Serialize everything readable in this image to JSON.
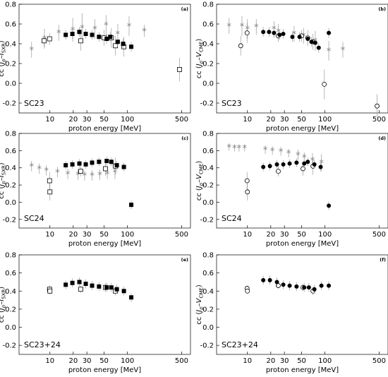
{
  "figure": {
    "x_axis": {
      "label": "proton energy [MeV]",
      "scale": "log",
      "range": [
        4,
        650
      ],
      "ticks": [
        10,
        20,
        30,
        50,
        100,
        500
      ],
      "tick_labels": [
        "10",
        "20",
        "30",
        "50",
        "100",
        "500"
      ]
    },
    "y_axis": {
      "range": [
        -0.3,
        0.8
      ],
      "ticks": [
        -0.2,
        0.0,
        0.2,
        0.4,
        0.6,
        0.8
      ],
      "tick_labels": [
        "-0.2",
        "0.0",
        "0.2",
        "0.4",
        "0.6",
        "0.8"
      ]
    },
    "colors": {
      "error_bar": "#a6a6a6",
      "star": "#7f7f7f",
      "marker": "#000000"
    }
  },
  "chart_data": [
    {
      "type": "scatter",
      "panel_label": "(a)",
      "cycle_label": "SC23",
      "ylabel": {
        "main": "cc (",
        "j": "J",
        "jsub": "p",
        "dash": "–",
        "v": "I",
        "vsub": "SXR",
        "close": ")"
      },
      "series": [
        {
          "marker": "filled-square",
          "points": [
            [
              16,
              0.49
            ],
            [
              19.5,
              0.5
            ],
            [
              24,
              0.52
            ],
            [
              29,
              0.5
            ],
            [
              35,
              0.49
            ],
            [
              43,
              0.47
            ],
            [
              54,
              0.45
            ],
            [
              60,
              0.47
            ],
            [
              75,
              0.42
            ],
            [
              88,
              0.4
            ],
            [
              112,
              0.37
            ]
          ]
        },
        {
          "marker": "open-square",
          "points": [
            [
              8.4,
              0.43,
              0.06
            ],
            [
              9.9,
              0.45,
              0.06
            ],
            [
              25,
              0.43,
              0.1
            ],
            [
              50,
              0.46,
              0.08
            ],
            [
              62,
              0.46,
              0.1
            ],
            [
              70,
              0.38,
              0.1
            ],
            [
              90,
              0.37,
              0.1
            ],
            [
              470,
              0.14,
              0.12
            ]
          ]
        },
        {
          "marker": "star",
          "points": [
            [
              5.8,
              0.34,
              0.08
            ],
            [
              8.5,
              0.45,
              0.1
            ],
            [
              13,
              0.51,
              0.08
            ],
            [
              19.7,
              0.54,
              0.12
            ],
            [
              26,
              0.56,
              0.15
            ],
            [
              38,
              0.55,
              0.1
            ],
            [
              53,
              0.59,
              0.1
            ],
            [
              75,
              0.5,
              0.1
            ],
            [
              105,
              0.58,
              0.1
            ],
            [
              165,
              0.53,
              0.06
            ]
          ]
        }
      ]
    },
    {
      "type": "scatter",
      "panel_label": "(b)",
      "cycle_label": "SC23",
      "ylabel": {
        "main": "cc (",
        "j": "J",
        "jsub": "p",
        "dash": "–",
        "v": "V",
        "vsub": "CME",
        "close": ")"
      },
      "series": [
        {
          "marker": "filled-circle",
          "points": [
            [
              16,
              0.52
            ],
            [
              19,
              0.52
            ],
            [
              22,
              0.51
            ],
            [
              26,
              0.49
            ],
            [
              29,
              0.5
            ],
            [
              38,
              0.47
            ],
            [
              47,
              0.47
            ],
            [
              60,
              0.45
            ],
            [
              67,
              0.42
            ],
            [
              75,
              0.41
            ],
            [
              83,
              0.36
            ],
            [
              112,
              0.51
            ]
          ]
        },
        {
          "marker": "open-circle",
          "points": [
            [
              8.2,
              0.38,
              0.1
            ],
            [
              9.9,
              0.51,
              0.1
            ],
            [
              25,
              0.48,
              0.06
            ],
            [
              50,
              0.48,
              0.06
            ],
            [
              60,
              0.46,
              0.08
            ],
            [
              70,
              0.42,
              0.08
            ],
            [
              98,
              -0.01,
              0.15
            ],
            [
              470,
              -0.23,
              0.12
            ]
          ]
        },
        {
          "marker": "star",
          "points": [
            [
              5.8,
              0.58,
              0.08
            ],
            [
              8.5,
              0.58,
              0.1
            ],
            [
              10,
              0.55,
              0.1
            ],
            [
              13,
              0.57,
              0.08
            ],
            [
              22,
              0.55,
              0.08
            ],
            [
              25,
              0.52,
              0.08
            ],
            [
              40,
              0.5,
              0.08
            ],
            [
              53,
              0.48,
              0.08
            ],
            [
              75,
              0.43,
              0.1
            ],
            [
              112,
              0.33,
              0.1
            ],
            [
              170,
              0.34,
              0.08
            ]
          ]
        }
      ]
    },
    {
      "type": "scatter",
      "panel_label": "(c)",
      "cycle_label": "SC24",
      "ylabel": {
        "main": "cc (",
        "j": "J",
        "jsub": "p",
        "dash": "–",
        "v": "I",
        "vsub": "SXR",
        "close": ")"
      },
      "series": [
        {
          "marker": "filled-square",
          "points": [
            [
              16,
              0.43
            ],
            [
              19.5,
              0.44
            ],
            [
              24,
              0.45
            ],
            [
              29,
              0.44
            ],
            [
              35,
              0.46
            ],
            [
              43,
              0.47
            ],
            [
              54,
              0.48
            ],
            [
              62,
              0.47
            ],
            [
              73,
              0.43
            ],
            [
              90,
              0.41
            ],
            [
              112,
              -0.03
            ]
          ]
        },
        {
          "marker": "open-square",
          "points": [
            [
              9.9,
              0.25,
              0.1
            ],
            [
              10,
              0.12,
              0.1
            ],
            [
              25,
              0.36,
              0.06
            ],
            [
              52,
              0.39,
              0.08
            ],
            [
              70,
              0.42,
              0.1
            ]
          ]
        },
        {
          "marker": "star",
          "points": [
            [
              5.8,
              0.42,
              0.06
            ],
            [
              7.3,
              0.39,
              0.06
            ],
            [
              9,
              0.37,
              0.06
            ],
            [
              12.5,
              0.35,
              0.06
            ],
            [
              17,
              0.33,
              0.06
            ],
            [
              23,
              0.32,
              0.06
            ],
            [
              28,
              0.31,
              0.06
            ],
            [
              35,
              0.31,
              0.06
            ],
            [
              44,
              0.32,
              0.06
            ],
            [
              55,
              0.33,
              0.06
            ],
            [
              69,
              0.35,
              0.08
            ]
          ]
        }
      ]
    },
    {
      "type": "scatter",
      "panel_label": "(d)",
      "cycle_label": "SC24",
      "ylabel": {
        "main": "cc (",
        "j": "J",
        "jsub": "p",
        "dash": "–",
        "v": "V",
        "vsub": "CME",
        "close": ")"
      },
      "series": [
        {
          "marker": "filled-circle",
          "points": [
            [
              16,
              0.41
            ],
            [
              19.5,
              0.42
            ],
            [
              24,
              0.44
            ],
            [
              29,
              0.44
            ],
            [
              35,
              0.45
            ],
            [
              43,
              0.46
            ],
            [
              54,
              0.45
            ],
            [
              60,
              0.47
            ],
            [
              73,
              0.44
            ],
            [
              88,
              0.41
            ],
            [
              112,
              -0.04
            ]
          ]
        },
        {
          "marker": "open-circle",
          "points": [
            [
              9.9,
              0.25,
              0.1
            ],
            [
              10,
              0.12,
              0.1
            ],
            [
              25,
              0.36,
              0.06
            ],
            [
              52,
              0.39,
              0.08
            ],
            [
              70,
              0.42,
              0.1
            ]
          ]
        },
        {
          "marker": "star",
          "points": [
            [
              5.8,
              0.64,
              0.04
            ],
            [
              6.8,
              0.63,
              0.04
            ],
            [
              7.8,
              0.63,
              0.04
            ],
            [
              9.2,
              0.63,
              0.04
            ],
            [
              17,
              0.61,
              0.05
            ],
            [
              21,
              0.6,
              0.05
            ],
            [
              27,
              0.59,
              0.05
            ],
            [
              34,
              0.57,
              0.05
            ],
            [
              45,
              0.55,
              0.06
            ],
            [
              54,
              0.52,
              0.06
            ],
            [
              69,
              0.49,
              0.08
            ],
            [
              90,
              0.46,
              0.1
            ]
          ]
        }
      ]
    },
    {
      "type": "scatter",
      "panel_label": "(e)",
      "cycle_label": "SC23+24",
      "ylabel": {
        "main": "cc (",
        "j": "J",
        "jsub": "p",
        "dash": "–",
        "v": "I",
        "vsub": "SXR",
        "close": ")"
      },
      "series": [
        {
          "marker": "filled-square",
          "points": [
            [
              16,
              0.47
            ],
            [
              19.5,
              0.49
            ],
            [
              24,
              0.5
            ],
            [
              29,
              0.48
            ],
            [
              35,
              0.46
            ],
            [
              43,
              0.45
            ],
            [
              54,
              0.44
            ],
            [
              62,
              0.44
            ],
            [
              73,
              0.42
            ],
            [
              90,
              0.4
            ],
            [
              112,
              0.33
            ]
          ]
        },
        {
          "marker": "open-square",
          "points": [
            [
              9.9,
              0.42,
              0.04
            ],
            [
              10,
              0.4,
              0.04
            ],
            [
              25,
              0.42,
              0.04
            ],
            [
              52,
              0.44,
              0.05
            ],
            [
              70,
              0.4,
              0.05
            ]
          ]
        }
      ]
    },
    {
      "type": "scatter",
      "panel_label": "(f)",
      "cycle_label": "SC23+24",
      "ylabel": {
        "main": "cc (",
        "j": "J",
        "jsub": "p",
        "dash": "–",
        "v": "V",
        "vsub": "CME",
        "close": ")"
      },
      "series": [
        {
          "marker": "filled-circle",
          "points": [
            [
              16,
              0.52
            ],
            [
              19.5,
              0.52
            ],
            [
              24,
              0.5
            ],
            [
              29,
              0.47
            ],
            [
              35,
              0.46
            ],
            [
              43,
              0.45
            ],
            [
              54,
              0.44
            ],
            [
              62,
              0.44
            ],
            [
              73,
              0.42
            ],
            [
              90,
              0.46
            ],
            [
              112,
              0.46
            ]
          ]
        },
        {
          "marker": "open-circle",
          "points": [
            [
              9.9,
              0.43,
              0.03
            ],
            [
              10,
              0.4,
              0.03
            ],
            [
              25,
              0.46,
              0.03
            ],
            [
              52,
              0.44,
              0.04
            ],
            [
              70,
              0.4,
              0.04
            ]
          ]
        }
      ]
    }
  ]
}
